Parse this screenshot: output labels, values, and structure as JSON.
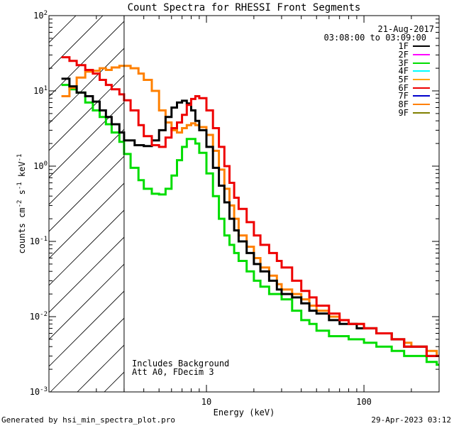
{
  "chart_data": {
    "type": "line",
    "title": "Count Spectra for RHESSI Front Segments",
    "xlabel": "Energy (keV)",
    "ylabel": "counts cm⁻² s⁻¹ keV⁻¹",
    "ylabel_parts": {
      "base": "counts cm",
      "e1": "-2",
      "mid": " s",
      "e2": "-1",
      "end": " keV",
      "e3": "-1"
    },
    "xscale": "log",
    "yscale": "log",
    "xlim": [
      1,
      300
    ],
    "ylim": [
      0.001,
      100
    ],
    "xticks": [
      {
        "value": 10,
        "label": "10"
      },
      {
        "value": 100,
        "label": "100"
      }
    ],
    "yticks": [
      {
        "value": 100,
        "base": "10",
        "exp": "2"
      },
      {
        "value": 10,
        "base": "10",
        "exp": "1"
      },
      {
        "value": 1,
        "base": "10",
        "exp": "0"
      },
      {
        "value": 0.1,
        "base": "10",
        "exp": "-1"
      },
      {
        "value": 0.01,
        "base": "10",
        "exp": "-2"
      },
      {
        "value": 0.001,
        "base": "10",
        "exp": "-3"
      }
    ],
    "shaded_region": {
      "x_from": 1,
      "x_to": 3,
      "pattern": "diagonal-hatch"
    },
    "date": "21-Aug-2017",
    "time_range": "03:08:00 to 03:09:00",
    "annotations": [
      "Includes Background",
      "Att A0, FDecim 3"
    ],
    "legend_position": "top-right",
    "series": [
      {
        "name": "1F",
        "color": "#000000",
        "points": [
          [
            1.2,
            14.5
          ],
          [
            1.35,
            11.5
          ],
          [
            1.5,
            9.5
          ],
          [
            1.7,
            8.5
          ],
          [
            1.9,
            7.2
          ],
          [
            2.1,
            5.5
          ],
          [
            2.3,
            4.5
          ],
          [
            2.5,
            3.6
          ],
          [
            2.8,
            2.8
          ],
          [
            3.0,
            2.2
          ],
          [
            3.5,
            1.9
          ],
          [
            4.0,
            1.85
          ],
          [
            4.5,
            2.2
          ],
          [
            5.0,
            3.0
          ],
          [
            5.5,
            4.5
          ],
          [
            6.0,
            6.0
          ],
          [
            6.5,
            7.0
          ],
          [
            7.0,
            7.4
          ],
          [
            7.5,
            6.8
          ],
          [
            8.0,
            5.5
          ],
          [
            8.5,
            4.0
          ],
          [
            9.0,
            3.0
          ],
          [
            10.0,
            1.8
          ],
          [
            11.0,
            0.95
          ],
          [
            12.0,
            0.55
          ],
          [
            13.0,
            0.33
          ],
          [
            14.0,
            0.2
          ],
          [
            15.0,
            0.14
          ],
          [
            16.0,
            0.1
          ],
          [
            18.0,
            0.07
          ],
          [
            20.0,
            0.05
          ],
          [
            22.0,
            0.04
          ],
          [
            25.0,
            0.03
          ],
          [
            28.0,
            0.023
          ],
          [
            30.0,
            0.02
          ],
          [
            35.0,
            0.018
          ],
          [
            40.0,
            0.015
          ],
          [
            45.0,
            0.012
          ],
          [
            50.0,
            0.011
          ],
          [
            60.0,
            0.009
          ],
          [
            70.0,
            0.008
          ],
          [
            80.0,
            0.008
          ],
          [
            90.0,
            0.007
          ],
          [
            100.0,
            0.007
          ],
          [
            120.0,
            0.006
          ],
          [
            150.0,
            0.005
          ],
          [
            180.0,
            0.004
          ],
          [
            200.0,
            0.004
          ],
          [
            250.0,
            0.003
          ],
          [
            290.0,
            0.003
          ]
        ]
      },
      {
        "name": "2F",
        "color": "#ff00ff",
        "points": []
      },
      {
        "name": "3F",
        "color": "#00dd00",
        "points": [
          [
            1.2,
            12.0
          ],
          [
            1.35,
            10.5
          ],
          [
            1.5,
            9.5
          ],
          [
            1.7,
            7.0
          ],
          [
            1.9,
            5.5
          ],
          [
            2.1,
            4.5
          ],
          [
            2.3,
            3.6
          ],
          [
            2.5,
            2.8
          ],
          [
            2.8,
            2.1
          ],
          [
            3.0,
            1.45
          ],
          [
            3.3,
            0.95
          ],
          [
            3.7,
            0.65
          ],
          [
            4.0,
            0.5
          ],
          [
            4.5,
            0.43
          ],
          [
            5.0,
            0.42
          ],
          [
            5.5,
            0.5
          ],
          [
            6.0,
            0.75
          ],
          [
            6.5,
            1.2
          ],
          [
            7.0,
            1.8
          ],
          [
            7.5,
            2.3
          ],
          [
            8.0,
            2.3
          ],
          [
            8.5,
            2.0
          ],
          [
            9.0,
            1.5
          ],
          [
            10.0,
            0.8
          ],
          [
            11.0,
            0.4
          ],
          [
            12.0,
            0.2
          ],
          [
            13.0,
            0.12
          ],
          [
            14.0,
            0.09
          ],
          [
            15.0,
            0.07
          ],
          [
            16.0,
            0.055
          ],
          [
            18.0,
            0.04
          ],
          [
            20.0,
            0.03
          ],
          [
            22.0,
            0.025
          ],
          [
            25.0,
            0.02
          ],
          [
            30.0,
            0.017
          ],
          [
            35.0,
            0.012
          ],
          [
            40.0,
            0.009
          ],
          [
            45.0,
            0.008
          ],
          [
            50.0,
            0.0065
          ],
          [
            60.0,
            0.0055
          ],
          [
            70.0,
            0.0055
          ],
          [
            80.0,
            0.005
          ],
          [
            90.0,
            0.005
          ],
          [
            100.0,
            0.0045
          ],
          [
            120.0,
            0.004
          ],
          [
            150.0,
            0.0035
          ],
          [
            180.0,
            0.003
          ],
          [
            200.0,
            0.003
          ],
          [
            250.0,
            0.0025
          ],
          [
            290.0,
            0.0023
          ]
        ]
      },
      {
        "name": "4F",
        "color": "#00ffff",
        "points": []
      },
      {
        "name": "5F",
        "color": "#ffa500",
        "points": []
      },
      {
        "name": "6F",
        "color": "#ee0000",
        "points": [
          [
            1.2,
            28.0
          ],
          [
            1.35,
            25.0
          ],
          [
            1.5,
            22.0
          ],
          [
            1.7,
            19.0
          ],
          [
            1.9,
            17.0
          ],
          [
            2.1,
            14.0
          ],
          [
            2.3,
            12.0
          ],
          [
            2.5,
            10.5
          ],
          [
            2.8,
            9.0
          ],
          [
            3.0,
            7.5
          ],
          [
            3.3,
            5.5
          ],
          [
            3.7,
            3.5
          ],
          [
            4.0,
            2.5
          ],
          [
            4.5,
            1.9
          ],
          [
            5.0,
            1.8
          ],
          [
            5.5,
            2.4
          ],
          [
            6.0,
            3.2
          ],
          [
            6.5,
            3.8
          ],
          [
            7.0,
            4.8
          ],
          [
            7.5,
            6.5
          ],
          [
            8.0,
            7.8
          ],
          [
            8.5,
            8.5
          ],
          [
            9.0,
            8.0
          ],
          [
            10.0,
            5.5
          ],
          [
            11.0,
            3.2
          ],
          [
            12.0,
            1.8
          ],
          [
            13.0,
            1.0
          ],
          [
            14.0,
            0.6
          ],
          [
            15.0,
            0.38
          ],
          [
            16.0,
            0.27
          ],
          [
            18.0,
            0.18
          ],
          [
            20.0,
            0.12
          ],
          [
            22.0,
            0.09
          ],
          [
            25.0,
            0.07
          ],
          [
            28.0,
            0.055
          ],
          [
            30.0,
            0.045
          ],
          [
            35.0,
            0.03
          ],
          [
            40.0,
            0.022
          ],
          [
            45.0,
            0.018
          ],
          [
            50.0,
            0.014
          ],
          [
            60.0,
            0.011
          ],
          [
            70.0,
            0.009
          ],
          [
            80.0,
            0.008
          ],
          [
            90.0,
            0.008
          ],
          [
            100.0,
            0.007
          ],
          [
            120.0,
            0.006
          ],
          [
            150.0,
            0.005
          ],
          [
            180.0,
            0.004
          ],
          [
            200.0,
            0.004
          ],
          [
            250.0,
            0.003
          ],
          [
            290.0,
            0.003
          ]
        ]
      },
      {
        "name": "7F",
        "color": "#0000cc",
        "points": []
      },
      {
        "name": "8F",
        "color": "#ff8000",
        "points": [
          [
            1.2,
            8.5
          ],
          [
            1.35,
            11.0
          ],
          [
            1.5,
            15.0
          ],
          [
            1.7,
            18.0
          ],
          [
            1.9,
            18.5
          ],
          [
            2.1,
            20.0
          ],
          [
            2.3,
            19.0
          ],
          [
            2.5,
            20.5
          ],
          [
            2.8,
            21.5
          ],
          [
            3.0,
            21.5
          ],
          [
            3.3,
            20.0
          ],
          [
            3.7,
            17.0
          ],
          [
            4.0,
            14.0
          ],
          [
            4.5,
            10.0
          ],
          [
            5.0,
            5.5
          ],
          [
            5.5,
            3.8
          ],
          [
            6.0,
            3.0
          ],
          [
            6.5,
            2.8
          ],
          [
            7.0,
            3.2
          ],
          [
            7.5,
            3.5
          ],
          [
            8.0,
            3.7
          ],
          [
            8.5,
            3.5
          ],
          [
            9.0,
            3.3
          ],
          [
            10.0,
            2.6
          ],
          [
            11.0,
            1.6
          ],
          [
            12.0,
            0.9
          ],
          [
            13.0,
            0.5
          ],
          [
            14.0,
            0.3
          ],
          [
            15.0,
            0.2
          ],
          [
            16.0,
            0.12
          ],
          [
            18.0,
            0.085
          ],
          [
            20.0,
            0.06
          ],
          [
            22.0,
            0.045
          ],
          [
            25.0,
            0.035
          ],
          [
            28.0,
            0.027
          ],
          [
            30.0,
            0.023
          ],
          [
            35.0,
            0.02
          ],
          [
            40.0,
            0.017
          ],
          [
            45.0,
            0.014
          ],
          [
            50.0,
            0.012
          ],
          [
            60.0,
            0.01
          ],
          [
            70.0,
            0.009
          ],
          [
            80.0,
            0.008
          ],
          [
            90.0,
            0.008
          ],
          [
            100.0,
            0.007
          ],
          [
            120.0,
            0.006
          ],
          [
            150.0,
            0.005
          ],
          [
            180.0,
            0.0045
          ],
          [
            200.0,
            0.004
          ],
          [
            250.0,
            0.0035
          ],
          [
            290.0,
            0.003
          ]
        ]
      },
      {
        "name": "9F",
        "color": "#808000",
        "points": []
      }
    ]
  },
  "footer": {
    "left": "Generated by hsi_min_spectra_plot.pro",
    "right": "29-Apr-2023 03:12"
  }
}
